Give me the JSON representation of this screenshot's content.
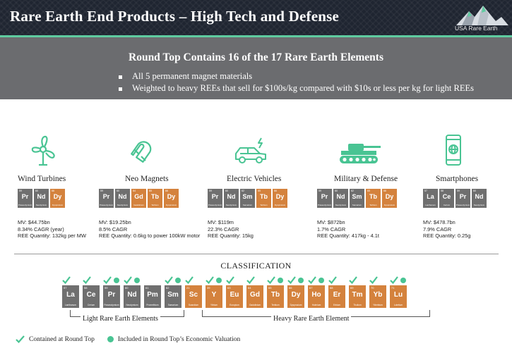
{
  "header": {
    "title": "Rare Earth End Products – High Tech and Defense",
    "logo_text": "USA Rare Earth"
  },
  "banner": {
    "heading": "Round Top Contains 16 of the 17 Rare Earth Elements",
    "bullets": [
      "All 5 permanent magnet materials",
      "Weighted to heavy REEs that sell for $100s/kg compared with $10s or less per kg for light REEs"
    ]
  },
  "products": [
    {
      "name": "Wind Turbines",
      "icon": "wind-turbine-icon",
      "tiles": [
        {
          "num": "59",
          "sym": "Pr",
          "el": "Praseodymium",
          "c": "g"
        },
        {
          "num": "60",
          "sym": "Nd",
          "el": "Neodymium",
          "c": "g"
        },
        {
          "num": "66",
          "sym": "Dy",
          "el": "Dysprosium",
          "c": "o"
        }
      ],
      "stats": [
        "MV: $44.75bn",
        "8.34% CAGR (year)",
        "REE Quantity:  132kg per MW"
      ]
    },
    {
      "name": "Neo Magnets",
      "icon": "magnet-icon",
      "tiles": [
        {
          "num": "59",
          "sym": "Pr",
          "el": "Praseodymium",
          "c": "g"
        },
        {
          "num": "60",
          "sym": "Nd",
          "el": "Neodymium",
          "c": "g"
        },
        {
          "num": "64",
          "sym": "Gd",
          "el": "Gadolinium",
          "c": "o"
        },
        {
          "num": "65",
          "sym": "Tb",
          "el": "Terbium",
          "c": "o"
        },
        {
          "num": "66",
          "sym": "Dy",
          "el": "Dysprosium",
          "c": "o"
        }
      ],
      "stats": [
        "MV: $19.25bn",
        "8.5% CAGR",
        "REE Quantity:  0.6kg to power 100kW motor"
      ]
    },
    {
      "name": "Electric Vehicles",
      "icon": "electric-vehicle-icon",
      "tiles": [
        {
          "num": "59",
          "sym": "Pr",
          "el": "Praseodymium",
          "c": "g"
        },
        {
          "num": "60",
          "sym": "Nd",
          "el": "Neodymium",
          "c": "g"
        },
        {
          "num": "62",
          "sym": "Sm",
          "el": "Samarium",
          "c": "g"
        },
        {
          "num": "65",
          "sym": "Tb",
          "el": "Terbium",
          "c": "o"
        },
        {
          "num": "66",
          "sym": "Dy",
          "el": "Dysprosium",
          "c": "o"
        }
      ],
      "stats": [
        "MV: $119m",
        "22.3% CAGR",
        "REE Quantity:  15kg"
      ]
    },
    {
      "name": "Military & Defense",
      "icon": "tank-icon",
      "tiles": [
        {
          "num": "59",
          "sym": "Pr",
          "el": "Praseodymium",
          "c": "g"
        },
        {
          "num": "60",
          "sym": "Nd",
          "el": "Neodymium",
          "c": "g"
        },
        {
          "num": "62",
          "sym": "Sm",
          "el": "Samarium",
          "c": "g"
        },
        {
          "num": "65",
          "sym": "Tb",
          "el": "Terbium",
          "c": "o"
        },
        {
          "num": "66",
          "sym": "Dy",
          "el": "Dysprosium",
          "c": "o"
        }
      ],
      "stats": [
        "MV: $872bn",
        "1.7% CAGR",
        "REE Quantity: 417kg - 4.1t"
      ]
    },
    {
      "name": "Smartphones",
      "icon": "smartphone-icon",
      "tiles": [
        {
          "num": "57",
          "sym": "La",
          "el": "Lanthanum",
          "c": "g"
        },
        {
          "num": "58",
          "sym": "Ce",
          "el": "Cerium",
          "c": "g"
        },
        {
          "num": "59",
          "sym": "Pr",
          "el": "Praseodymium",
          "c": "g"
        },
        {
          "num": "60",
          "sym": "Nd",
          "el": "Neodymium",
          "c": "g"
        }
      ],
      "stats": [
        "MV: $478.7bn",
        "7.9% CAGR",
        "REE Quantity: 0.25g"
      ]
    }
  ],
  "classification": {
    "title": "CLASSIFICATION",
    "elements": [
      {
        "num": "57",
        "sym": "La",
        "el": "Lanthanum",
        "c": "g",
        "check": true,
        "dot": false
      },
      {
        "num": "58",
        "sym": "Ce",
        "el": "Cerium",
        "c": "g",
        "check": true,
        "dot": false
      },
      {
        "num": "59",
        "sym": "Pr",
        "el": "Praseodymium",
        "c": "g",
        "check": true,
        "dot": true
      },
      {
        "num": "60",
        "sym": "Nd",
        "el": "Neodymium",
        "c": "g",
        "check": true,
        "dot": true
      },
      {
        "num": "61",
        "sym": "Pm",
        "el": "Promethium",
        "c": "g",
        "check": false,
        "dot": false
      },
      {
        "num": "62",
        "sym": "Sm",
        "el": "Samarium",
        "c": "g",
        "check": true,
        "dot": true
      },
      {
        "num": "21",
        "sym": "Sc",
        "el": "Scandium",
        "c": "o",
        "check": true,
        "dot": false
      },
      {
        "num": "39",
        "sym": "Y",
        "el": "Yttrium",
        "c": "o",
        "check": true,
        "dot": true
      },
      {
        "num": "63",
        "sym": "Eu",
        "el": "Europium",
        "c": "o",
        "check": true,
        "dot": false
      },
      {
        "num": "64",
        "sym": "Gd",
        "el": "Gadolinium",
        "c": "o",
        "check": true,
        "dot": false
      },
      {
        "num": "65",
        "sym": "Tb",
        "el": "Terbium",
        "c": "o",
        "check": true,
        "dot": true
      },
      {
        "num": "66",
        "sym": "Dy",
        "el": "Dysprosium",
        "c": "o",
        "check": true,
        "dot": true
      },
      {
        "num": "67",
        "sym": "Ho",
        "el": "Holmium",
        "c": "o",
        "check": true,
        "dot": true
      },
      {
        "num": "68",
        "sym": "Er",
        "el": "Erbium",
        "c": "o",
        "check": true,
        "dot": false
      },
      {
        "num": "69",
        "sym": "Tm",
        "el": "Thulium",
        "c": "o",
        "check": true,
        "dot": false
      },
      {
        "num": "70",
        "sym": "Yb",
        "el": "Ytterbium",
        "c": "o",
        "check": true,
        "dot": false
      },
      {
        "num": "71",
        "sym": "Lu",
        "el": "Lutetium",
        "c": "o",
        "check": true,
        "dot": true
      }
    ],
    "light_label": "Light Rare Earth Elements",
    "heavy_label": "Heavy Rare Earth Element"
  },
  "legend": {
    "contained": "Contained at Round Top",
    "included": "Included in Round Top’s Economic Valuation"
  },
  "colors": {
    "header_bg": "#1f2531",
    "accent_teal": "#5fcca0",
    "banner_gray": "#6b6c6f",
    "light_tile": "#6f6f6f",
    "heavy_tile": "#d4823d"
  }
}
